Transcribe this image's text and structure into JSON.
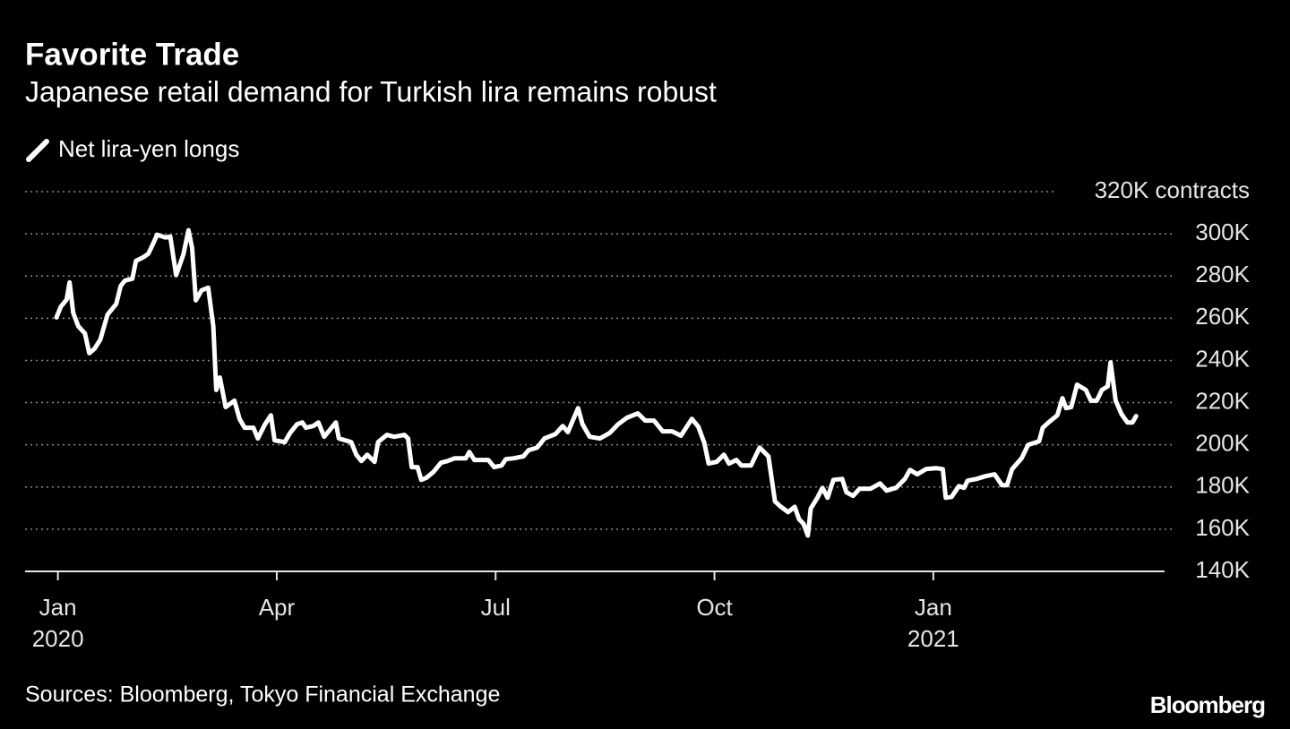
{
  "chart_data": {
    "type": "line",
    "title": "Favorite Trade",
    "subtitle": "Japanese retail demand for Turkish lira remains robust",
    "source": "Sources: Bloomberg, Tokyo Financial Exchange",
    "brand": "Bloomberg",
    "grid": true,
    "x": [
      -0.02,
      0.04,
      0.12,
      0.16,
      0.21,
      0.28,
      0.37,
      0.43,
      0.5,
      0.58,
      0.68,
      0.8,
      0.86,
      0.92,
      1.02,
      1.07,
      1.17,
      1.24,
      1.31,
      1.36,
      1.47,
      1.54,
      1.62,
      1.72,
      1.79,
      1.84,
      1.89,
      1.97,
      2.06,
      2.13,
      2.17,
      2.22,
      2.3,
      2.42,
      2.49,
      2.56,
      2.68,
      2.74,
      2.84,
      2.92,
      2.97,
      3.11,
      3.18,
      3.28,
      3.35,
      3.4,
      3.5,
      3.57,
      3.65,
      3.81,
      3.85,
      4.02,
      4.09,
      4.16,
      4.24,
      4.34,
      4.39,
      4.51,
      4.61,
      4.75,
      4.8,
      4.85,
      4.93,
      4.98,
      5.05,
      5.15,
      5.25,
      5.34,
      5.44,
      5.59,
      5.64,
      5.71,
      5.9,
      5.98,
      6.08,
      6.14,
      6.25,
      6.38,
      6.45,
      6.57,
      6.67,
      6.82,
      6.92,
      6.99,
      7.13,
      7.19,
      7.29,
      7.43,
      7.56,
      7.68,
      7.8,
      7.95,
      8.05,
      8.17,
      8.29,
      8.42,
      8.54,
      8.69,
      8.78,
      8.86,
      8.92,
      9.03,
      9.13,
      9.2,
      9.3,
      9.37,
      9.5,
      9.62,
      9.74,
      9.83,
      9.91,
      10.01,
      10.1,
      10.16,
      10.22,
      10.28,
      10.32,
      10.41,
      10.48,
      10.55,
      10.63,
      10.75,
      10.81,
      10.9,
      10.99,
      11.14,
      11.27,
      11.36,
      11.49,
      11.61,
      11.68,
      11.78,
      11.9,
      12.04,
      12.13,
      12.17,
      12.25,
      12.35,
      12.42,
      12.47,
      12.59,
      12.71,
      12.84,
      12.94,
      13.01,
      13.08,
      13.21,
      13.3,
      13.45,
      13.5,
      13.58,
      13.7,
      13.77,
      13.82,
      13.89,
      13.97,
      14.09,
      14.16,
      14.24,
      14.31,
      14.39,
      14.43,
      14.5,
      14.58,
      14.66,
      14.73,
      14.78
    ],
    "series": [
      {
        "name": "Net lira-yen longs",
        "color": "#ffffff",
        "values": [
          260.4,
          265.5,
          268.9,
          277.0,
          262.6,
          256.2,
          252.8,
          243.4,
          245.5,
          249.8,
          261.7,
          266.8,
          275.3,
          277.9,
          278.7,
          287.2,
          288.9,
          290.6,
          295.7,
          299.6,
          298.3,
          298.7,
          280.4,
          290.2,
          301.7,
          293.2,
          268.5,
          273.2,
          274.5,
          256.2,
          226.0,
          231.9,
          217.9,
          220.9,
          212.3,
          208.1,
          208.1,
          203.0,
          209.8,
          214.0,
          202.1,
          201.3,
          205.5,
          209.8,
          210.6,
          208.1,
          208.9,
          210.6,
          203.8,
          210.6,
          203.0,
          201.3,
          195.3,
          192.3,
          195.3,
          191.9,
          201.3,
          204.7,
          203.8,
          204.7,
          203.0,
          189.4,
          189.4,
          183.4,
          184.3,
          187.2,
          191.5,
          192.3,
          193.6,
          193.6,
          196.6,
          192.8,
          192.8,
          189.4,
          190.2,
          193.2,
          193.6,
          194.5,
          197.4,
          198.7,
          203.0,
          205.1,
          208.9,
          206.0,
          217.4,
          209.8,
          203.8,
          203.0,
          205.5,
          209.8,
          212.8,
          214.9,
          211.5,
          211.5,
          206.4,
          206.4,
          204.3,
          212.3,
          208.5,
          200.9,
          191.1,
          191.9,
          195.3,
          191.1,
          192.8,
          190.2,
          190.2,
          198.7,
          194.5,
          173.2,
          170.6,
          168.1,
          170.6,
          164.7,
          162.6,
          157.0,
          169.8,
          174.9,
          179.6,
          174.9,
          183.4,
          183.8,
          177.5,
          175.8,
          179.2,
          179.2,
          181.7,
          178.3,
          179.6,
          183.8,
          188.1,
          186.0,
          188.5,
          188.9,
          188.5,
          174.9,
          175.3,
          180.4,
          179.6,
          183.0,
          183.8,
          185.1,
          186.0,
          180.9,
          180.9,
          188.5,
          193.6,
          200.0,
          201.7,
          208.1,
          210.6,
          214.0,
          222.1,
          217.4,
          217.9,
          228.5,
          226.0,
          220.9,
          220.9,
          226.0,
          227.7,
          239.1,
          220.9,
          214.5,
          210.6,
          210.6,
          213.6
        ]
      }
    ],
    "xlim": [
      -0.45,
      15.17
    ],
    "xticks": [
      {
        "value": 0,
        "label": "Jan"
      },
      {
        "value": 3,
        "label": "Apr"
      },
      {
        "value": 6,
        "label": "Jul"
      },
      {
        "value": 9,
        "label": "Oct"
      },
      {
        "value": 12,
        "label": "Jan"
      }
    ],
    "x_year_labels": [
      {
        "value": 0,
        "label": "2020"
      },
      {
        "value": 12,
        "label": "2021"
      }
    ],
    "ylim": [
      140,
      320
    ],
    "yticks": [
      {
        "value": 140,
        "label": "140K"
      },
      {
        "value": 160,
        "label": "160K"
      },
      {
        "value": 180,
        "label": "180K"
      },
      {
        "value": 200,
        "label": "200K"
      },
      {
        "value": 220,
        "label": "220K"
      },
      {
        "value": 240,
        "label": "240K"
      },
      {
        "value": 260,
        "label": "260K"
      },
      {
        "value": 280,
        "label": "280K"
      },
      {
        "value": 300,
        "label": "300K"
      },
      {
        "value": 320,
        "label": "320K contracts"
      }
    ]
  }
}
